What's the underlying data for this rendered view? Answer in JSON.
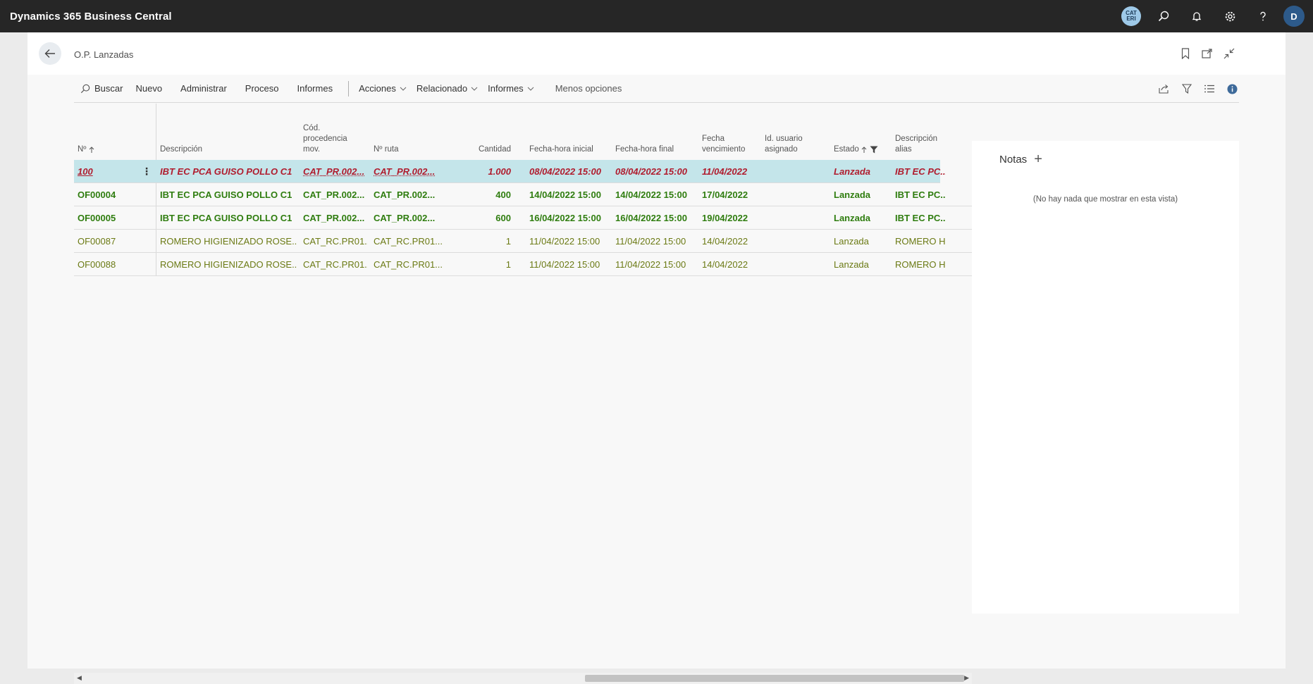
{
  "app": {
    "title": "Dynamics 365 Business Central",
    "company_badge": "CAT ERI",
    "user_initial": "D"
  },
  "page": {
    "title": "O.P. Lanzadas"
  },
  "actions": {
    "search": "Buscar",
    "new": "Nuevo",
    "manage": "Administrar",
    "process": "Proceso",
    "reports": "Informes",
    "actions_menu": "Acciones",
    "related_menu": "Relacionado",
    "reports_menu": "Informes",
    "fewer_options": "Menos opciones"
  },
  "columns": {
    "no": "Nº",
    "description": "Descripción",
    "source_code": "Cód. procedencia mov.",
    "routing": "Nº ruta",
    "quantity": "Cantidad",
    "start": "Fecha-hora inicial",
    "end": "Fecha-hora final",
    "due": "Fecha vencimiento",
    "user": "Id. usuario asignado",
    "status": "Estado",
    "alias": "Descripción alias"
  },
  "rows": [
    {
      "no": "100",
      "description": "IBT EC PCA GUISO POLLO C1",
      "source_code": "CAT_PR.002...",
      "routing": "CAT_PR.002...",
      "quantity": "1.000",
      "start": "08/04/2022 15:00",
      "end": "08/04/2022 15:00",
      "due": "11/04/2022",
      "user": "",
      "status": "Lanzada",
      "alias": "IBT EC PC...",
      "style": "sel"
    },
    {
      "no": "OF00004",
      "description": "IBT EC PCA GUISO POLLO C1",
      "source_code": "CAT_PR.002...",
      "routing": "CAT_PR.002...",
      "quantity": "400",
      "start": "14/04/2022 15:00",
      "end": "14/04/2022 15:00",
      "due": "17/04/2022",
      "user": "",
      "status": "Lanzada",
      "alias": "IBT EC PC...",
      "style": "bold"
    },
    {
      "no": "OF00005",
      "description": "IBT EC PCA GUISO POLLO C1",
      "source_code": "CAT_PR.002...",
      "routing": "CAT_PR.002...",
      "quantity": "600",
      "start": "16/04/2022 15:00",
      "end": "16/04/2022 15:00",
      "due": "19/04/2022",
      "user": "",
      "status": "Lanzada",
      "alias": "IBT EC PC...",
      "style": "bold"
    },
    {
      "no": "OF00087",
      "description": " ROMERO HIGIENIZADO  ROSE...",
      "source_code": "CAT_RC.PR01...",
      "routing": "CAT_RC.PR01...",
      "quantity": "1",
      "start": "11/04/2022 15:00",
      "end": "11/04/2022 15:00",
      "due": "14/04/2022",
      "user": "",
      "status": "Lanzada",
      "alias": "ROMERO H...",
      "style": "norm"
    },
    {
      "no": "OF00088",
      "description": " ROMERO HIGIENIZADO  ROSE...",
      "source_code": "CAT_RC.PR01...",
      "routing": "CAT_RC.PR01...",
      "quantity": "1",
      "start": "11/04/2022 15:00",
      "end": "11/04/2022 15:00",
      "due": "14/04/2022",
      "user": "",
      "status": "Lanzada",
      "alias": "ROMERO H...",
      "style": "norm"
    }
  ],
  "notes": {
    "title": "Notas",
    "empty": "(No hay nada que mostrar en esta vista)"
  },
  "icons": {
    "search": "search-icon",
    "bell": "bell-icon",
    "gear": "gear-icon",
    "help": "help-icon",
    "back": "back-arrow-icon",
    "bookmark": "bookmark-icon",
    "open_new": "open-in-new-window-icon",
    "collapse": "collapse-icon",
    "share": "share-icon",
    "filter": "filter-icon",
    "list": "list-view-icon",
    "info": "info-icon"
  }
}
